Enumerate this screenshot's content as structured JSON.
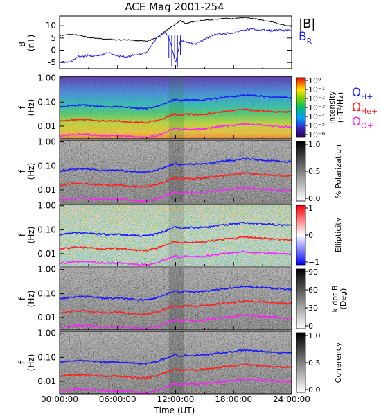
{
  "title": "ACE Mag 2001-254",
  "x_axis": {
    "label": "Time (UT)",
    "ticks": [
      "00:00:00",
      "06:00:00",
      "12:00:00",
      "18:00:00",
      "24:00:00"
    ],
    "range_hours": [
      0,
      24
    ]
  },
  "freq_axis": {
    "label": "f\n(Hz)",
    "ticks": [
      "1.00",
      "0.10",
      "0.01"
    ],
    "scale": "log",
    "range": [
      0.003,
      1.2
    ]
  },
  "legend": {
    "b_total": "|B|",
    "b_r": "B",
    "b_r_sub": "R",
    "cyclotron": [
      {
        "main": "Ω",
        "sub": "H+",
        "color": "#1a1aff"
      },
      {
        "main": "Ω",
        "sub": "He+",
        "color": "#ff2020"
      },
      {
        "main": "Ω",
        "sub": "O+",
        "color": "#ff20ff"
      }
    ]
  },
  "colors": {
    "b_total": "#000000",
    "b_r": "#1a1aff",
    "h_plus": "#1a1aff",
    "he_plus": "#ff2020",
    "o_plus": "#ff20ff"
  },
  "panels": [
    {
      "id": "intensity",
      "colorbar_label": "Intensity\n(nT²/Hz)",
      "colorbar_ticks": [
        "10⁰",
        "10⁻¹",
        "10⁻²",
        "10⁻³",
        "10⁻⁴",
        "10⁻⁵",
        "10⁻⁶"
      ],
      "colormap": "rainbow"
    },
    {
      "id": "polarization",
      "colorbar_label": "% Polarization",
      "colorbar_ticks": [
        "1.0",
        "0.5",
        "0.0"
      ],
      "colormap": "gray"
    },
    {
      "id": "ellipticity",
      "colorbar_label": "Ellipticity",
      "colorbar_ticks": [
        "1",
        "0",
        "−1"
      ],
      "colormap": "bwr"
    },
    {
      "id": "kdotb",
      "colorbar_label": "k dot B\n(Deg)",
      "colorbar_ticks": [
        "90",
        "60",
        "30",
        "0"
      ],
      "colormap": "gray"
    },
    {
      "id": "coherency",
      "colorbar_label": "Coherency",
      "colorbar_ticks": [
        "1.0",
        "0.5",
        "0.0"
      ],
      "colormap": "gray"
    }
  ],
  "chart_data": {
    "type": "line",
    "panel_b": {
      "ylabel": "B\n(nT)",
      "yticks": [
        "10",
        "5",
        "0",
        "-5"
      ],
      "ylim": [
        -7.5,
        14
      ],
      "x_hours": [
        0,
        1,
        2,
        3,
        4,
        5,
        6,
        7,
        8,
        9,
        10,
        10.5,
        11,
        11.5,
        12,
        12.5,
        13,
        14,
        15,
        16,
        17,
        18,
        19,
        20,
        21,
        22,
        23,
        24
      ],
      "series": [
        {
          "name": "|B|",
          "values": [
            6,
            6.4,
            6.2,
            5.2,
            4.8,
            4.6,
            4.2,
            4.3,
            4.0,
            3.6,
            5.0,
            6.6,
            7.8,
            9.4,
            10.6,
            12.2,
            11.0,
            11.8,
            12.2,
            12.6,
            13.0,
            12.8,
            13.4,
            13.0,
            12.2,
            11.6,
            10.4,
            9.8
          ]
        },
        {
          "name": "B_R",
          "values": [
            -4.8,
            -5.0,
            -2.6,
            -2.2,
            -2.4,
            -1.0,
            -2.2,
            -2.8,
            -1.8,
            -1.0,
            4.8,
            6.0,
            7.2,
            3.0,
            -5.0,
            4.0,
            3.4,
            2.4,
            4.6,
            6.4,
            6.8,
            7.2,
            8.2,
            8.6,
            8.2,
            8.0,
            8.2,
            8.0
          ]
        }
      ]
    },
    "spectral_panels": {
      "x_hours": [
        0,
        1,
        2,
        3,
        4,
        5,
        6,
        7,
        8,
        9,
        10,
        11,
        11.5,
        12,
        12.5,
        13,
        14,
        15,
        16,
        17,
        18,
        19,
        20,
        21,
        22,
        23,
        24
      ],
      "series": [
        {
          "name": "ΩH+",
          "values": [
            0.062,
            0.07,
            0.075,
            0.072,
            0.066,
            0.063,
            0.066,
            0.06,
            0.056,
            0.055,
            0.066,
            0.09,
            0.11,
            0.13,
            0.11,
            0.125,
            0.12,
            0.125,
            0.14,
            0.16,
            0.17,
            0.2,
            0.185,
            0.175,
            0.165,
            0.155,
            0.15
          ]
        },
        {
          "name": "ΩHe+",
          "values": [
            0.0155,
            0.0175,
            0.019,
            0.018,
            0.0165,
            0.016,
            0.0165,
            0.015,
            0.014,
            0.0138,
            0.0165,
            0.0225,
            0.0275,
            0.0325,
            0.0275,
            0.031,
            0.03,
            0.031,
            0.035,
            0.04,
            0.043,
            0.05,
            0.046,
            0.044,
            0.041,
            0.039,
            0.0375
          ]
        },
        {
          "name": "ΩO+",
          "values": [
            0.0039,
            0.0044,
            0.0047,
            0.0045,
            0.0041,
            0.004,
            0.0041,
            0.0038,
            0.0035,
            0.0034,
            0.0041,
            0.0056,
            0.0069,
            0.0081,
            0.0069,
            0.0078,
            0.0075,
            0.0078,
            0.0088,
            0.01,
            0.0107,
            0.0125,
            0.0116,
            0.0109,
            0.0103,
            0.0097,
            0.0094
          ]
        }
      ]
    }
  }
}
